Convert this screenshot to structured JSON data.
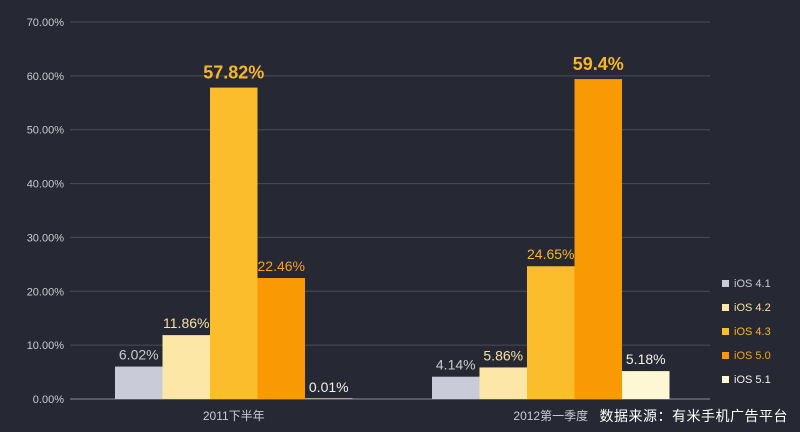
{
  "chart_data": {
    "type": "bar",
    "categories": [
      "2011下半年",
      "2012第一季度"
    ],
    "series": [
      {
        "name": "iOS 4.1",
        "values": [
          6.02,
          4.14
        ],
        "labels": [
          "6.02%",
          "4.14%"
        ],
        "color": "#c9cbd8",
        "label_color": "#c9cbd4"
      },
      {
        "name": "iOS 4.2",
        "values": [
          11.86,
          5.86
        ],
        "labels": [
          "11.86%",
          "5.86%"
        ],
        "color": "#fde7a6",
        "label_color": "#f6e2a2"
      },
      {
        "name": "iOS 4.3",
        "values": [
          57.82,
          24.65
        ],
        "labels": [
          "57.82%",
          "24.65%"
        ],
        "color": "#fbbd2c",
        "label_color": "#f6b62a"
      },
      {
        "name": "iOS 5.0",
        "values": [
          22.46,
          59.4
        ],
        "labels": [
          "22.46%",
          "59.4%"
        ],
        "color": "#f99a04",
        "label_color": "#f6a21c"
      },
      {
        "name": "iOS 5.1",
        "values": [
          0.01,
          5.18
        ],
        "labels": [
          "0.01%",
          "5.18%"
        ],
        "color": "#fdf7d4",
        "label_color": "#f2f1ea"
      }
    ],
    "emphasized_labels": [
      "57.82%",
      "59.4%"
    ],
    "ylim": [
      0,
      70
    ],
    "yticks": [
      "0.00%",
      "10.00%",
      "20.00%",
      "30.00%",
      "40.00%",
      "50.00%",
      "60.00%",
      "70.00%"
    ],
    "grid": true,
    "legend_position": "right"
  },
  "source_note": "数据来源：有米手机广告平台"
}
